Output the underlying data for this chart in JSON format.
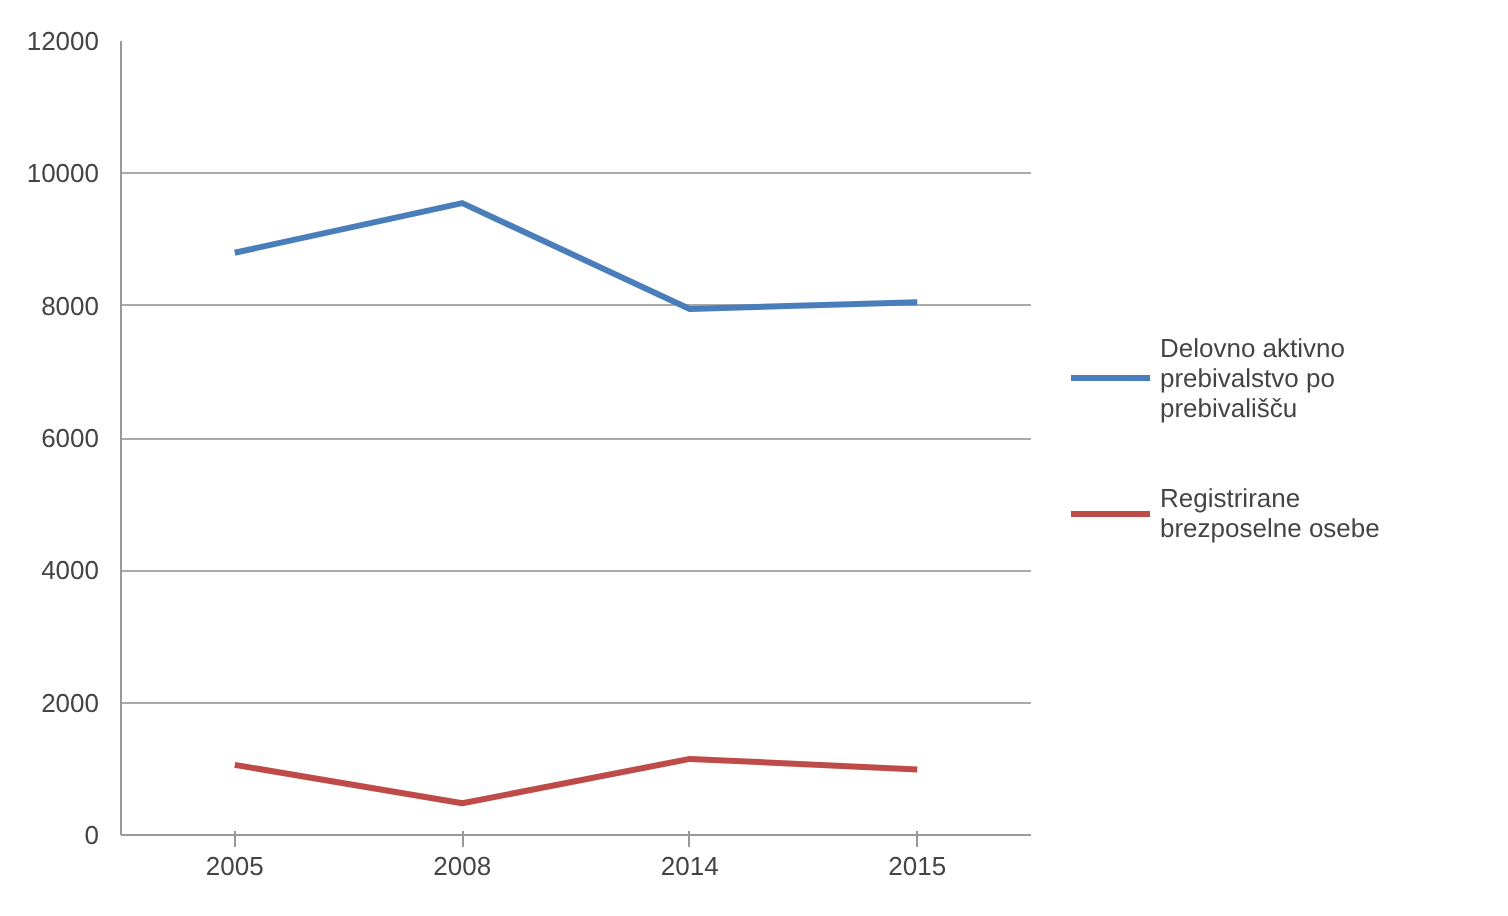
{
  "chart_data": {
    "type": "line",
    "categories": [
      "2005",
      "2008",
      "2014",
      "2015"
    ],
    "series": [
      {
        "name": "Delovno aktivno prebivalstvo po prebivališču",
        "color": "#4a7ebb",
        "values": [
          8800,
          9550,
          7950,
          8050
        ]
      },
      {
        "name": "Registrirane brezposelne osebe",
        "color": "#be4b48",
        "values": [
          1060,
          480,
          1150,
          990
        ]
      }
    ],
    "ylim": [
      0,
      12000
    ],
    "yticks": [
      0,
      2000,
      4000,
      6000,
      8000,
      10000,
      12000
    ],
    "grid": "y",
    "legend": "right",
    "marker": "none",
    "line_style": "solid"
  }
}
